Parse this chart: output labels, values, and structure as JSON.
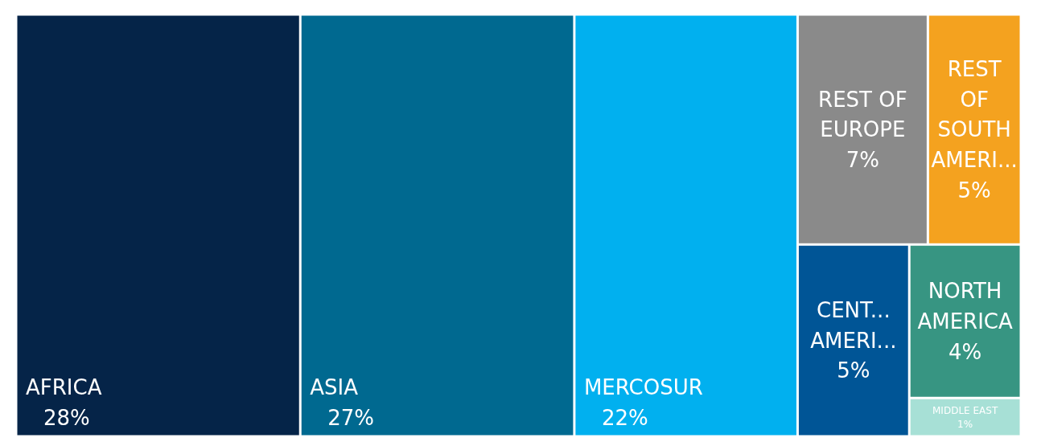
{
  "chart_data": {
    "type": "other",
    "categories": [
      "AFRICA",
      "ASIA",
      "MERCOSUR",
      "REST OF EUROPE",
      "REST OF SOUTH AMERI...",
      "CENT... AMERI...",
      "NORTH AMERICA",
      "MIDDLE EAST"
    ],
    "values": [
      28,
      27,
      22,
      7,
      5,
      5,
      4,
      1
    ],
    "colors": [
      "#052448",
      "#006990",
      "#01b0ef",
      "#8a8a8a",
      "#f4a21f",
      "#005596",
      "#379582",
      "#a7e0d6"
    ],
    "value_labels": [
      "28%",
      "27%",
      "22%",
      "7%",
      "5%",
      "5%",
      "4%",
      "1%"
    ]
  }
}
